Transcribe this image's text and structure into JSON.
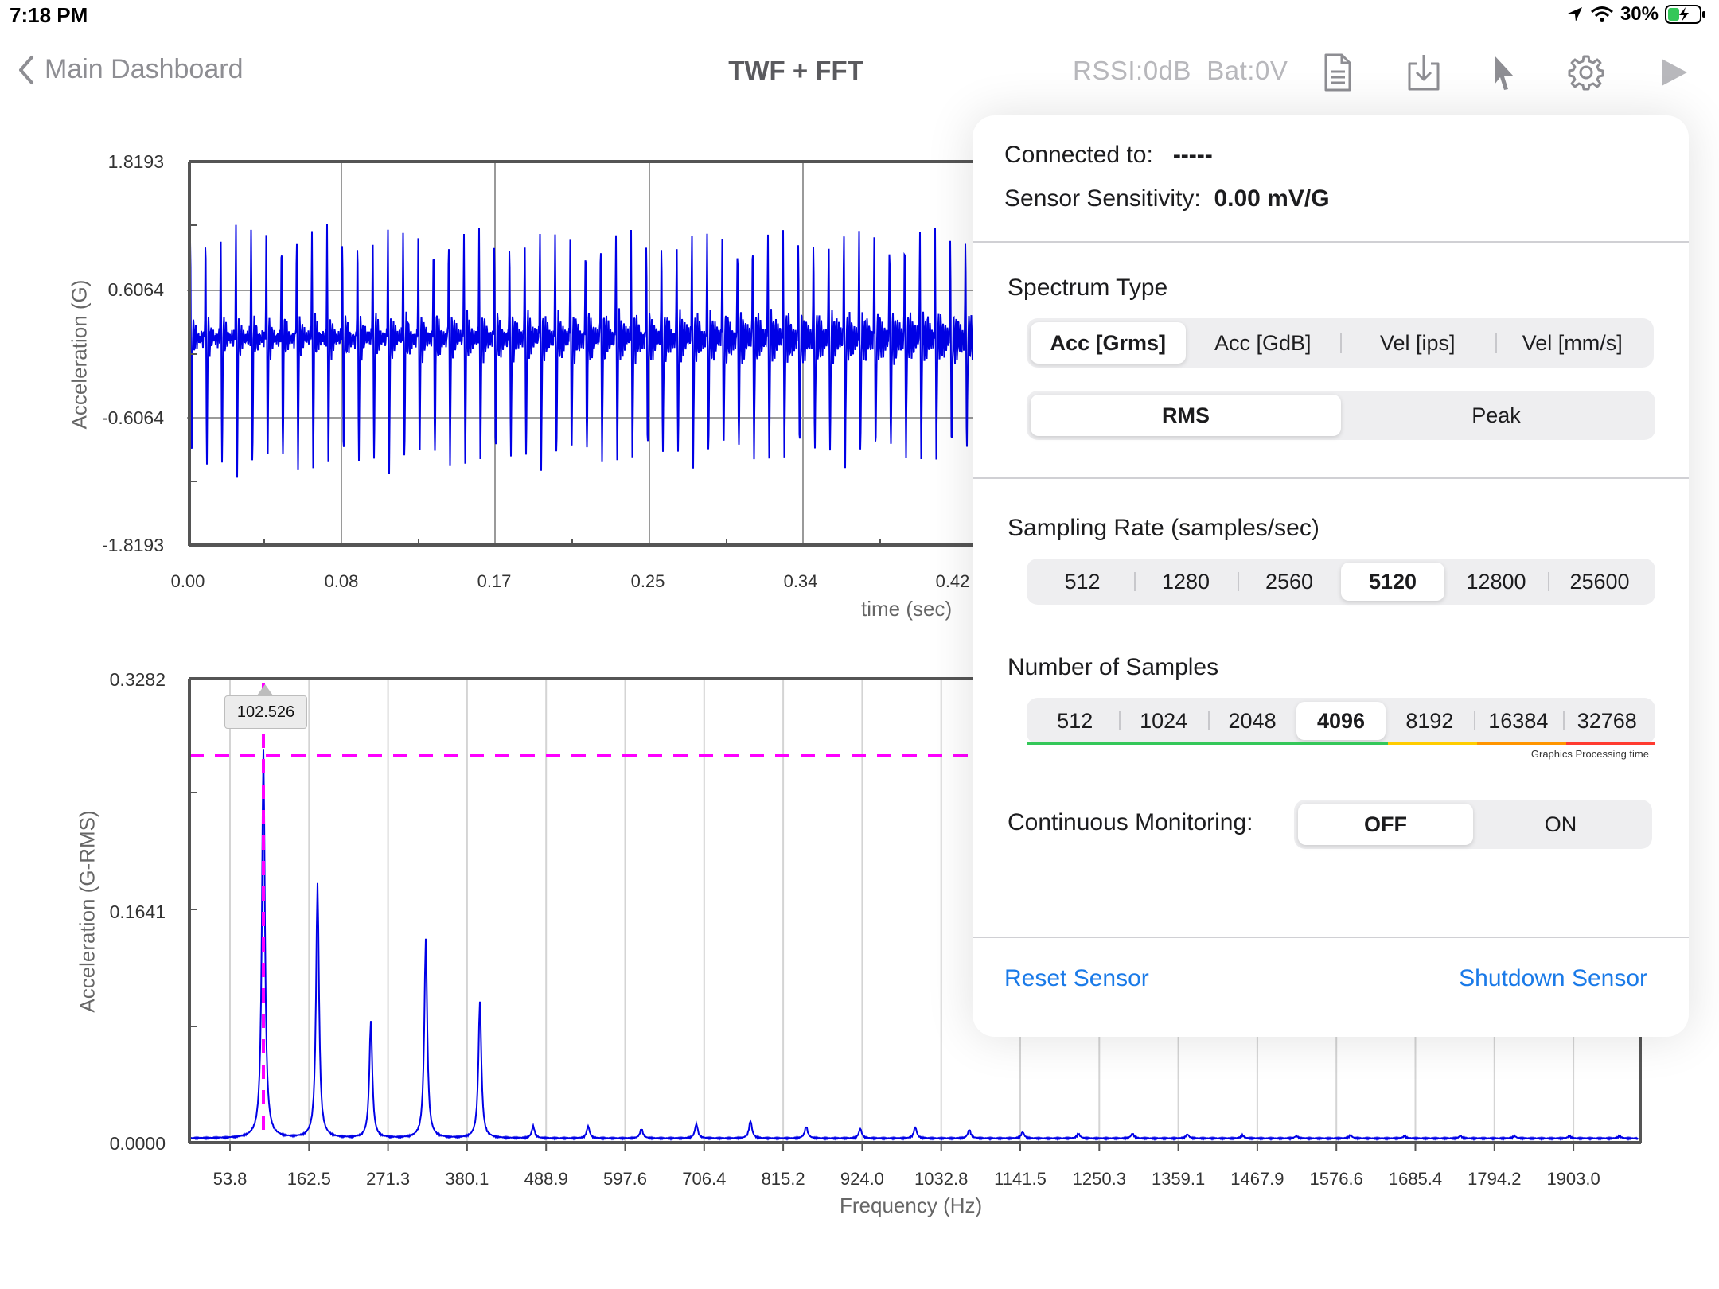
{
  "status_bar": {
    "time": "7:18 PM",
    "battery": "30%"
  },
  "nav": {
    "back_label": "Main Dashboard",
    "title": "TWF + FFT",
    "rssi": "RSSI:0dB",
    "battery_level": "Bat:0V"
  },
  "twf_chart": {
    "yticks": [
      "1.8193",
      "0.6064",
      "-0.6064",
      "-1.8193"
    ],
    "xticks": [
      "0.00",
      "0.08",
      "0.17",
      "0.25",
      "0.34",
      "0.42"
    ],
    "ylabel": "Acceleration (G)",
    "xlabel": "time (sec)"
  },
  "fft_chart": {
    "yticks": [
      "0.3282",
      "0.1641",
      "0.0000"
    ],
    "xticks": [
      "53.8",
      "162.5",
      "271.3",
      "380.1",
      "488.9",
      "597.6",
      "706.4",
      "815.2",
      "924.0",
      "1032.8",
      "1141.5",
      "1250.3",
      "1359.1",
      "1467.9",
      "1576.6",
      "1685.4",
      "1794.2",
      "1903.0"
    ],
    "ylabel": "Acceleration (G-RMS)",
    "xlabel": "Frequency (Hz)",
    "cursor_label": "102.526"
  },
  "popover": {
    "connected_label": "Connected to:",
    "connected_value": "-----",
    "sensitivity_label": "Sensor Sensitivity:",
    "sensitivity_value": "0.00 mV/G",
    "spectrum_title": "Spectrum Type",
    "spectrum_options": [
      "Acc [Grms]",
      "Acc [GdB]",
      "Vel [ips]",
      "Vel [mm/s]"
    ],
    "spectrum_selected": "Acc [Grms]",
    "mode_options": [
      "RMS",
      "Peak"
    ],
    "mode_selected": "RMS",
    "sampling_title": "Sampling Rate (samples/sec)",
    "sampling_options": [
      "512",
      "1280",
      "2560",
      "5120",
      "12800",
      "25600"
    ],
    "sampling_selected": "5120",
    "samples_title": "Number of Samples",
    "samples_options": [
      "512",
      "1024",
      "2048",
      "4096",
      "8192",
      "16384",
      "32768"
    ],
    "samples_selected": "4096",
    "graphics_note": "Graphics Processing time",
    "monitoring_label": "Continuous Monitoring:",
    "monitoring_options": [
      "OFF",
      "ON"
    ],
    "monitoring_selected": "OFF",
    "reset_label": "Reset Sensor",
    "shutdown_label": "Shutdown Sensor"
  },
  "colors": {
    "signal": "#0000e6",
    "cursor": "#ff00ff",
    "link": "#1a7ae8",
    "bar_green": "#34c759",
    "bar_yellow": "#ffcc00",
    "bar_orange": "#ff9500",
    "bar_red": "#ff3b30"
  }
}
